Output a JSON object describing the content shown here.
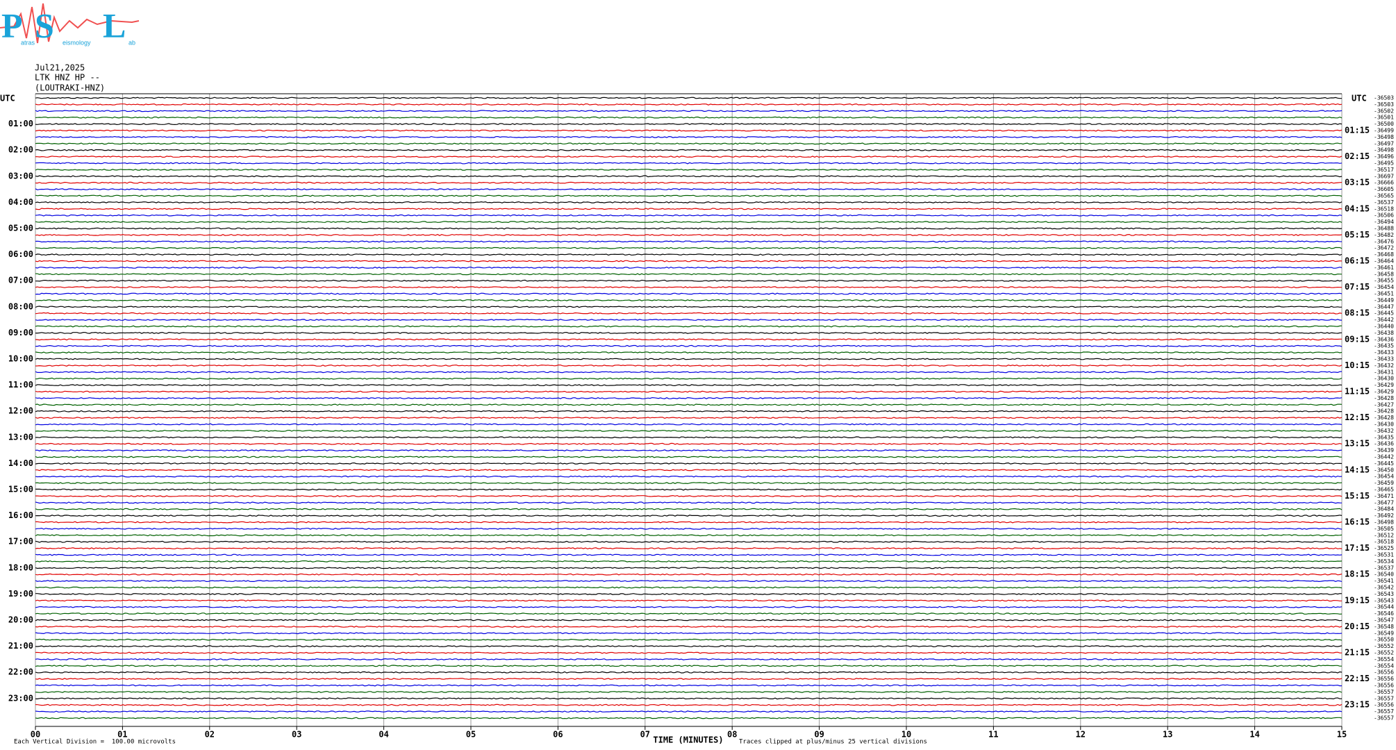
{
  "logo": {
    "letters": [
      "P",
      "S",
      "L"
    ],
    "words": [
      "atras",
      "eismology",
      "ab"
    ]
  },
  "header": {
    "date": "Jul21,2025",
    "channel": "LTK HNZ HP --",
    "station": "(LOUTRAKI-HNZ)"
  },
  "left_axis": {
    "title": "UTC",
    "labels": [
      "01:00",
      "02:00",
      "03:00",
      "04:00",
      "05:00",
      "06:00",
      "07:00",
      "08:00",
      "09:00",
      "10:00",
      "11:00",
      "12:00",
      "13:00",
      "14:00",
      "15:00",
      "16:00",
      "17:00",
      "18:00",
      "19:00",
      "20:00",
      "21:00",
      "22:00",
      "23:00"
    ]
  },
  "right_axis": {
    "title": "UTC",
    "labels": [
      "01:15",
      "02:15",
      "03:15",
      "04:15",
      "05:15",
      "06:15",
      "07:15",
      "08:15",
      "09:15",
      "10:15",
      "11:15",
      "12:15",
      "13:15",
      "14:15",
      "15:15",
      "16:15",
      "17:15",
      "18:15",
      "19:15",
      "20:15",
      "21:15",
      "22:15",
      "23:15"
    ]
  },
  "trace_offsets": [
    -36503,
    -36503,
    -36502,
    -36501,
    -36500,
    -36499,
    -36498,
    -36497,
    -36498,
    -36496,
    -36495,
    -36517,
    -36697,
    -36666,
    -36605,
    -36565,
    -36537,
    -36518,
    -36506,
    -36494,
    -36488,
    -36482,
    -36476,
    -36472,
    -36468,
    -36464,
    -36461,
    -36458,
    -36455,
    -36454,
    -36451,
    -36449,
    -36447,
    -36445,
    -36442,
    -36440,
    -36438,
    -36436,
    -36435,
    -36433,
    -36433,
    -36432,
    -36431,
    -36430,
    -36429,
    -36429,
    -36428,
    -36427,
    -36428,
    -36428,
    -36430,
    -36432,
    -36435,
    -36436,
    -36439,
    -36442,
    -36445,
    -36450,
    -36454,
    -36459,
    -36465,
    -36471,
    -36477,
    -36484,
    -36492,
    -36498,
    -36505,
    -36512,
    -36518,
    -36525,
    -36531,
    -36534,
    -36537,
    -36540,
    -36541,
    -36542,
    -36543,
    -36543,
    -36544,
    -36546,
    -36547,
    -36548,
    -36549,
    -36550,
    -36552,
    -36552,
    -36554,
    -36554,
    -36556,
    -36556,
    -36556,
    -36557,
    -36557,
    -36556,
    -36557,
    -36557
  ],
  "x_axis": {
    "labels": [
      "00",
      "01",
      "02",
      "03",
      "04",
      "05",
      "06",
      "07",
      "08",
      "09",
      "10",
      "11",
      "12",
      "13",
      "14",
      "15"
    ],
    "title": "TIME (MINUTES)"
  },
  "footer": {
    "scale": "Each Vertical Division =  100.00 microvolts",
    "clip": "Traces clipped at plus/minus 25 vertical divisions"
  }
}
